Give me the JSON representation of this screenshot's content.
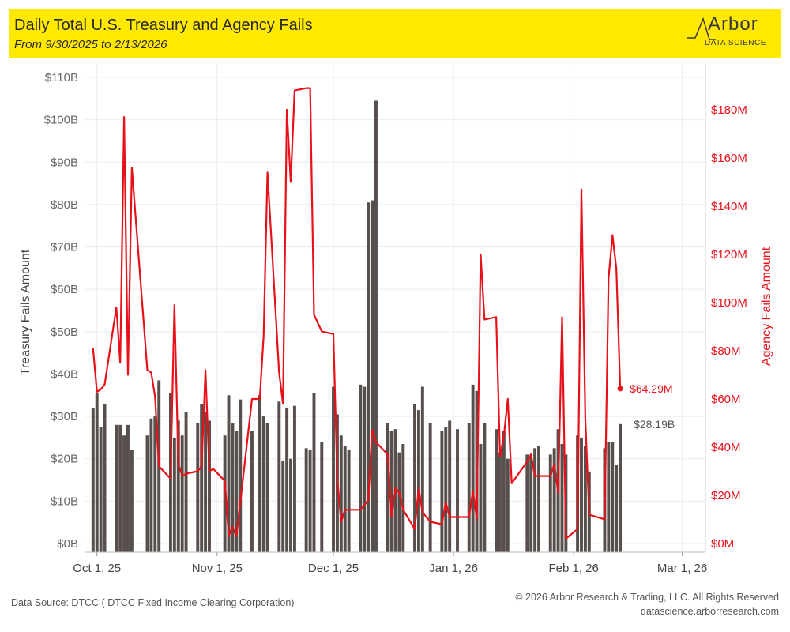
{
  "header": {
    "title": "Daily Total U.S. Treasury and Agency Fails",
    "subtitle": "From 9/30/2025 to 2/13/2026",
    "brand_color": "#ffe900"
  },
  "logo": {
    "word": "Arbor",
    "sub": "DATA SCIENCE"
  },
  "chart_data": {
    "type": "bar",
    "left_axis": {
      "label": "Treasury Fails Amount",
      "ticks": [
        "$0B",
        "$10B",
        "$20B",
        "$30B",
        "$40B",
        "$50B",
        "$60B",
        "$70B",
        "$80B",
        "$90B",
        "$100B",
        "$110B"
      ],
      "range": [
        0,
        113
      ],
      "unit": "B"
    },
    "right_axis": {
      "label": "Agency Fails Amount",
      "ticks": [
        "$0M",
        "$20M",
        "$40M",
        "$60M",
        "$80M",
        "$100M",
        "$120M",
        "$140M",
        "$160M",
        "$180M"
      ],
      "range": [
        0,
        195
      ],
      "unit": "M",
      "color": "#e8111a"
    },
    "x_axis": {
      "ticks": [
        "Oct 1, 25",
        "Nov 1, 25",
        "Dec 1, 25",
        "Jan 1, 26",
        "Feb 1, 26",
        "Mar 1, 26"
      ],
      "tick_dates": [
        "2025-10-01",
        "2025-11-01",
        "2025-12-01",
        "2026-01-01",
        "2026-02-01",
        "2026-03-01"
      ],
      "range": [
        "2025-09-28",
        "2026-03-07"
      ]
    },
    "grid": true,
    "series": [
      {
        "name": "Treasury Fails Amount",
        "type": "bar",
        "axis": "left",
        "color": "#574f4b",
        "points": [
          {
            "date": "2025-09-30",
            "value": 32.0
          },
          {
            "date": "2025-10-01",
            "value": 35.5
          },
          {
            "date": "2025-10-02",
            "value": 27.5
          },
          {
            "date": "2025-10-03",
            "value": 33.0
          },
          {
            "date": "2025-10-06",
            "value": 28.0
          },
          {
            "date": "2025-10-07",
            "value": 28.0
          },
          {
            "date": "2025-10-08",
            "value": 25.5
          },
          {
            "date": "2025-10-09",
            "value": 28.0
          },
          {
            "date": "2025-10-10",
            "value": 22.0
          },
          {
            "date": "2025-10-14",
            "value": 25.5
          },
          {
            "date": "2025-10-15",
            "value": 29.5
          },
          {
            "date": "2025-10-16",
            "value": 30.0
          },
          {
            "date": "2025-10-17",
            "value": 38.5
          },
          {
            "date": "2025-10-20",
            "value": 35.5
          },
          {
            "date": "2025-10-21",
            "value": 25.0
          },
          {
            "date": "2025-10-22",
            "value": 29.0
          },
          {
            "date": "2025-10-23",
            "value": 25.5
          },
          {
            "date": "2025-10-24",
            "value": 31.0
          },
          {
            "date": "2025-10-27",
            "value": 28.5
          },
          {
            "date": "2025-10-28",
            "value": 33.0
          },
          {
            "date": "2025-10-29",
            "value": 31.0
          },
          {
            "date": "2025-10-30",
            "value": 29.0
          },
          {
            "date": "2025-11-03",
            "value": 25.5
          },
          {
            "date": "2025-11-04",
            "value": 35.0
          },
          {
            "date": "2025-11-05",
            "value": 28.5
          },
          {
            "date": "2025-11-06",
            "value": 26.5
          },
          {
            "date": "2025-11-07",
            "value": 34.0
          },
          {
            "date": "2025-11-10",
            "value": 26.5
          },
          {
            "date": "2025-11-12",
            "value": 35.0
          },
          {
            "date": "2025-11-13",
            "value": 30.0
          },
          {
            "date": "2025-11-14",
            "value": 28.5
          },
          {
            "date": "2025-11-17",
            "value": 33.5
          },
          {
            "date": "2025-11-18",
            "value": 19.5
          },
          {
            "date": "2025-11-19",
            "value": 32.0
          },
          {
            "date": "2025-11-20",
            "value": 20.0
          },
          {
            "date": "2025-11-21",
            "value": 32.5
          },
          {
            "date": "2025-11-24",
            "value": 22.5
          },
          {
            "date": "2025-11-25",
            "value": 22.0
          },
          {
            "date": "2025-11-26",
            "value": 35.5
          },
          {
            "date": "2025-11-28",
            "value": 24.0
          },
          {
            "date": "2025-12-01",
            "value": 37.0
          },
          {
            "date": "2025-12-02",
            "value": 30.5
          },
          {
            "date": "2025-12-03",
            "value": 25.5
          },
          {
            "date": "2025-12-04",
            "value": 23.0
          },
          {
            "date": "2025-12-05",
            "value": 22.0
          },
          {
            "date": "2025-12-08",
            "value": 37.5
          },
          {
            "date": "2025-12-09",
            "value": 37.0
          },
          {
            "date": "2025-12-10",
            "value": 80.5
          },
          {
            "date": "2025-12-11",
            "value": 81.0
          },
          {
            "date": "2025-12-12",
            "value": 104.5
          },
          {
            "date": "2025-12-15",
            "value": 28.5
          },
          {
            "date": "2025-12-16",
            "value": 26.5
          },
          {
            "date": "2025-12-17",
            "value": 27.0
          },
          {
            "date": "2025-12-18",
            "value": 21.5
          },
          {
            "date": "2025-12-19",
            "value": 23.5
          },
          {
            "date": "2025-12-22",
            "value": 33.0
          },
          {
            "date": "2025-12-23",
            "value": 31.5
          },
          {
            "date": "2025-12-24",
            "value": 37.0
          },
          {
            "date": "2025-12-26",
            "value": 28.5
          },
          {
            "date": "2025-12-29",
            "value": 26.5
          },
          {
            "date": "2025-12-30",
            "value": 27.5
          },
          {
            "date": "2025-12-31",
            "value": 29.0
          },
          {
            "date": "2026-01-02",
            "value": 27.0
          },
          {
            "date": "2026-01-05",
            "value": 28.5
          },
          {
            "date": "2026-01-06",
            "value": 37.5
          },
          {
            "date": "2026-01-07",
            "value": 36.0
          },
          {
            "date": "2026-01-08",
            "value": 23.5
          },
          {
            "date": "2026-01-09",
            "value": 28.5
          },
          {
            "date": "2026-01-12",
            "value": 27.0
          },
          {
            "date": "2026-01-13",
            "value": 21.5
          },
          {
            "date": "2026-01-14",
            "value": 26.5
          },
          {
            "date": "2026-01-15",
            "value": 20.0
          },
          {
            "date": "2026-01-20",
            "value": 21.0
          },
          {
            "date": "2026-01-21",
            "value": 20.5
          },
          {
            "date": "2026-01-22",
            "value": 22.5
          },
          {
            "date": "2026-01-23",
            "value": 23.0
          },
          {
            "date": "2026-01-26",
            "value": 21.0
          },
          {
            "date": "2026-01-27",
            "value": 22.5
          },
          {
            "date": "2026-01-28",
            "value": 27.0
          },
          {
            "date": "2026-01-29",
            "value": 23.5
          },
          {
            "date": "2026-01-30",
            "value": 21.0
          },
          {
            "date": "2026-02-02",
            "value": 25.5
          },
          {
            "date": "2026-02-03",
            "value": 25.0
          },
          {
            "date": "2026-02-04",
            "value": 23.0
          },
          {
            "date": "2026-02-05",
            "value": 17.0
          },
          {
            "date": "2026-02-09",
            "value": 22.5
          },
          {
            "date": "2026-02-10",
            "value": 24.0
          },
          {
            "date": "2026-02-11",
            "value": 24.0
          },
          {
            "date": "2026-02-12",
            "value": 18.5
          },
          {
            "date": "2026-02-13",
            "value": 28.19
          }
        ],
        "last_label": "$28.19B"
      },
      {
        "name": "Agency Fails Amount",
        "type": "line",
        "axis": "right",
        "color": "#e8111a",
        "points": [
          {
            "date": "2025-09-30",
            "value": 81
          },
          {
            "date": "2025-10-01",
            "value": 63
          },
          {
            "date": "2025-10-02",
            "value": 64
          },
          {
            "date": "2025-10-03",
            "value": 66
          },
          {
            "date": "2025-10-06",
            "value": 98
          },
          {
            "date": "2025-10-07",
            "value": 75
          },
          {
            "date": "2025-10-08",
            "value": 177
          },
          {
            "date": "2025-10-09",
            "value": 70
          },
          {
            "date": "2025-10-10",
            "value": 156
          },
          {
            "date": "2025-10-14",
            "value": 72
          },
          {
            "date": "2025-10-15",
            "value": 71
          },
          {
            "date": "2025-10-16",
            "value": 61
          },
          {
            "date": "2025-10-17",
            "value": 32
          },
          {
            "date": "2025-10-20",
            "value": 27
          },
          {
            "date": "2025-10-21",
            "value": 99
          },
          {
            "date": "2025-10-22",
            "value": 33
          },
          {
            "date": "2025-10-23",
            "value": 28
          },
          {
            "date": "2025-10-24",
            "value": 29
          },
          {
            "date": "2025-10-27",
            "value": 30
          },
          {
            "date": "2025-10-28",
            "value": 32
          },
          {
            "date": "2025-10-29",
            "value": 72
          },
          {
            "date": "2025-10-30",
            "value": 30
          },
          {
            "date": "2025-10-31",
            "value": 31
          },
          {
            "date": "2025-11-03",
            "value": 26
          },
          {
            "date": "2025-11-04",
            "value": 3
          },
          {
            "date": "2025-11-05",
            "value": 7
          },
          {
            "date": "2025-11-06",
            "value": 3
          },
          {
            "date": "2025-11-10",
            "value": 60
          },
          {
            "date": "2025-11-12",
            "value": 60
          },
          {
            "date": "2025-11-13",
            "value": 86
          },
          {
            "date": "2025-11-14",
            "value": 154
          },
          {
            "date": "2025-11-17",
            "value": 71
          },
          {
            "date": "2025-11-18",
            "value": 58
          },
          {
            "date": "2025-11-19",
            "value": 180
          },
          {
            "date": "2025-11-20",
            "value": 150
          },
          {
            "date": "2025-11-21",
            "value": 188
          },
          {
            "date": "2025-11-24",
            "value": 189
          },
          {
            "date": "2025-11-25",
            "value": 189
          },
          {
            "date": "2025-11-26",
            "value": 95
          },
          {
            "date": "2025-11-28",
            "value": 88
          },
          {
            "date": "2025-12-01",
            "value": 87
          },
          {
            "date": "2025-12-02",
            "value": 27
          },
          {
            "date": "2025-12-03",
            "value": 9
          },
          {
            "date": "2025-12-04",
            "value": 14
          },
          {
            "date": "2025-12-08",
            "value": 14
          },
          {
            "date": "2025-12-10",
            "value": 18
          },
          {
            "date": "2025-12-11",
            "value": 47
          },
          {
            "date": "2025-12-12",
            "value": 42
          },
          {
            "date": "2025-12-15",
            "value": 37
          },
          {
            "date": "2025-12-16",
            "value": 11
          },
          {
            "date": "2025-12-17",
            "value": 23
          },
          {
            "date": "2025-12-18",
            "value": 21
          },
          {
            "date": "2025-12-19",
            "value": 14
          },
          {
            "date": "2025-12-22",
            "value": 6
          },
          {
            "date": "2025-12-23",
            "value": 23
          },
          {
            "date": "2025-12-24",
            "value": 13
          },
          {
            "date": "2025-12-26",
            "value": 9
          },
          {
            "date": "2025-12-29",
            "value": 8
          },
          {
            "date": "2025-12-30",
            "value": 17
          },
          {
            "date": "2025-12-31",
            "value": 11
          },
          {
            "date": "2026-01-02",
            "value": 11
          },
          {
            "date": "2026-01-05",
            "value": 11
          },
          {
            "date": "2026-01-06",
            "value": 22
          },
          {
            "date": "2026-01-07",
            "value": 10
          },
          {
            "date": "2026-01-08",
            "value": 120
          },
          {
            "date": "2026-01-09",
            "value": 93
          },
          {
            "date": "2026-01-12",
            "value": 94
          },
          {
            "date": "2026-01-13",
            "value": 36
          },
          {
            "date": "2026-01-14",
            "value": 45
          },
          {
            "date": "2026-01-15",
            "value": 60
          },
          {
            "date": "2026-01-16",
            "value": 25
          },
          {
            "date": "2026-01-20",
            "value": 34
          },
          {
            "date": "2026-01-21",
            "value": 37
          },
          {
            "date": "2026-01-22",
            "value": 28
          },
          {
            "date": "2026-01-23",
            "value": 28
          },
          {
            "date": "2026-01-26",
            "value": 28
          },
          {
            "date": "2026-01-27",
            "value": 33
          },
          {
            "date": "2026-01-28",
            "value": 21
          },
          {
            "date": "2026-01-29",
            "value": 94
          },
          {
            "date": "2026-01-30",
            "value": 2
          },
          {
            "date": "2026-02-02",
            "value": 6
          },
          {
            "date": "2026-02-03",
            "value": 147
          },
          {
            "date": "2026-02-04",
            "value": 52
          },
          {
            "date": "2026-02-05",
            "value": 12
          },
          {
            "date": "2026-02-09",
            "value": 10
          },
          {
            "date": "2026-02-10",
            "value": 110
          },
          {
            "date": "2026-02-11",
            "value": 128
          },
          {
            "date": "2026-02-12",
            "value": 114
          },
          {
            "date": "2026-02-13",
            "value": 64.29
          }
        ],
        "last_label": "$64.29M"
      }
    ]
  },
  "footer": {
    "source": "Data Source: DTCC ( DTCC Fixed Income Clearing Corporation)",
    "copyright": "© 2026 Arbor Research & Trading, LLC. All Rights Reserved",
    "website": "datascience.arborresearch.com"
  }
}
